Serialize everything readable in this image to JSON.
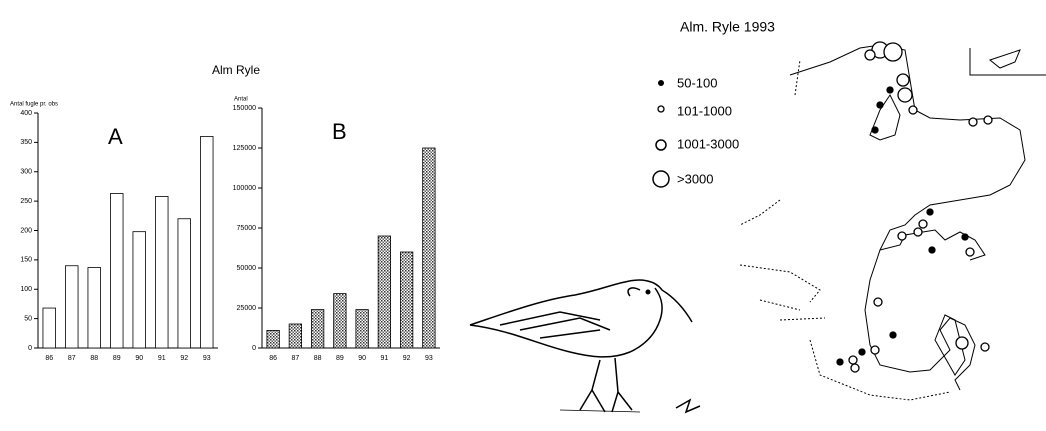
{
  "figure_title": "Alm Ryle",
  "chart_data": [
    {
      "type": "bar",
      "y_label": "Antal fugle pr. obs",
      "annotation": "A",
      "categories": [
        "86",
        "87",
        "88",
        "89",
        "90",
        "91",
        "92",
        "93"
      ],
      "values": [
        68,
        140,
        137,
        263,
        198,
        258,
        220,
        360
      ],
      "color": "#ffffff",
      "ylim": [
        0,
        400
      ],
      "yticks": [
        0,
        50,
        100,
        150,
        200,
        250,
        300,
        350,
        400
      ]
    },
    {
      "type": "bar",
      "y_label": "Antal",
      "annotation": "B",
      "categories": [
        "86",
        "87",
        "88",
        "89",
        "90",
        "91",
        "92",
        "93"
      ],
      "values": [
        11000,
        15000,
        24000,
        34000,
        24000,
        70000,
        60000,
        125000
      ],
      "color": "#b0b0b0",
      "ylim": [
        0,
        150000
      ],
      "yticks": [
        0,
        25000,
        50000,
        75000,
        100000,
        125000,
        150000
      ]
    }
  ],
  "map": {
    "title": "Alm. Ryle 1993",
    "legend": [
      "50-100",
      "101-1000",
      "1001-3000",
      ">3000"
    ]
  }
}
